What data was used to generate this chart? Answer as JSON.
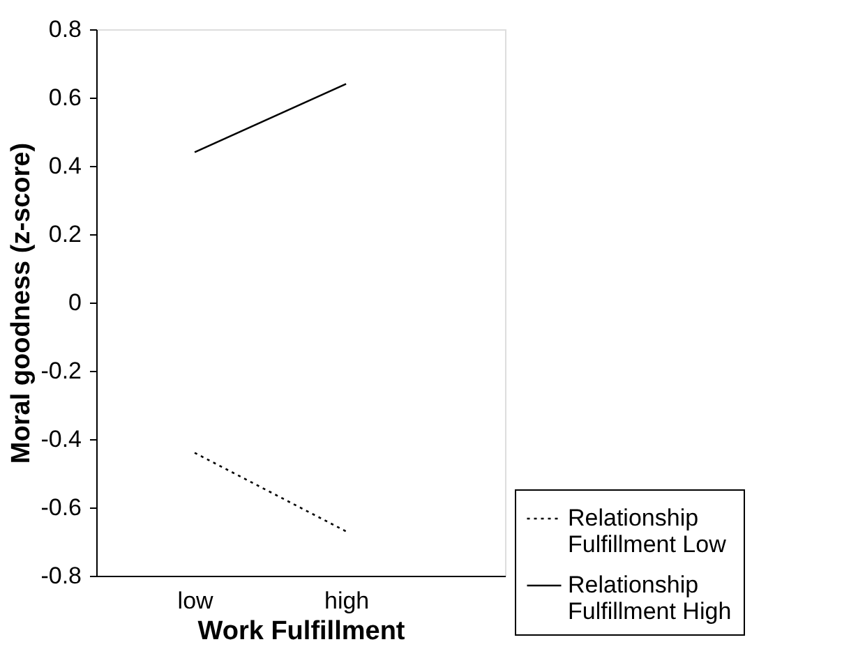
{
  "chart_data": {
    "type": "line",
    "xlabel": "Work Fulfillment",
    "ylabel": "Moral goodness (z-score)",
    "categories": [
      "low",
      "high"
    ],
    "series": [
      {
        "name": "Relationship Fulfillment Low",
        "color": "#000000",
        "line_style": "dotted",
        "values": [
          -0.44,
          -0.67
        ]
      },
      {
        "name": "Relationship Fulfillment High",
        "color": "#000000",
        "line_style": "solid",
        "values": [
          0.44,
          0.64
        ]
      }
    ],
    "ylim": [
      -0.8,
      0.8
    ],
    "yticks": [
      -0.8,
      -0.6,
      -0.4,
      -0.2,
      0,
      0.2,
      0.4,
      0.6,
      0.8
    ],
    "grid": false,
    "legend": "bottom right",
    "marker": "none"
  }
}
